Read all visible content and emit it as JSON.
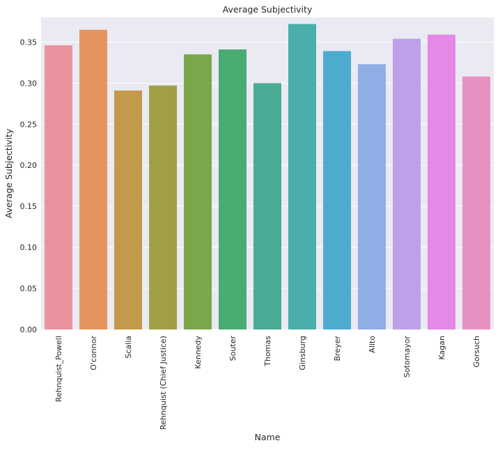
{
  "chart_data": {
    "type": "bar",
    "title": "Average Subjectivity",
    "xlabel": "Name",
    "ylabel": "Average Subjectivity",
    "ylim": [
      0,
      0.38
    ],
    "yticks": [
      "0.00",
      "0.05",
      "0.10",
      "0.15",
      "0.20",
      "0.25",
      "0.30",
      "0.35"
    ],
    "grid": true,
    "categories": [
      "Rehnquist_Powell",
      "O'connor",
      "Scalia",
      "Rehnquist (Chief Justice)",
      "Kennedy",
      "Souter",
      "Thomas",
      "Ginsburg",
      "Breyer",
      "Alito",
      "Sotomayor",
      "Kagan",
      "Gorsuch"
    ],
    "values": [
      0.346,
      0.365,
      0.291,
      0.297,
      0.335,
      0.341,
      0.3,
      0.372,
      0.339,
      0.323,
      0.354,
      0.359,
      0.308
    ],
    "colors": [
      "#ea929e",
      "#e5945e",
      "#c3994b",
      "#a09f45",
      "#7ba74a",
      "#4aab73",
      "#4baa95",
      "#4aaeaa",
      "#4dabcf",
      "#90aee6",
      "#bea0e9",
      "#e588e6",
      "#e791c2"
    ],
    "plot_background": "#eaeaf2",
    "grid_color": "#ffffff"
  }
}
